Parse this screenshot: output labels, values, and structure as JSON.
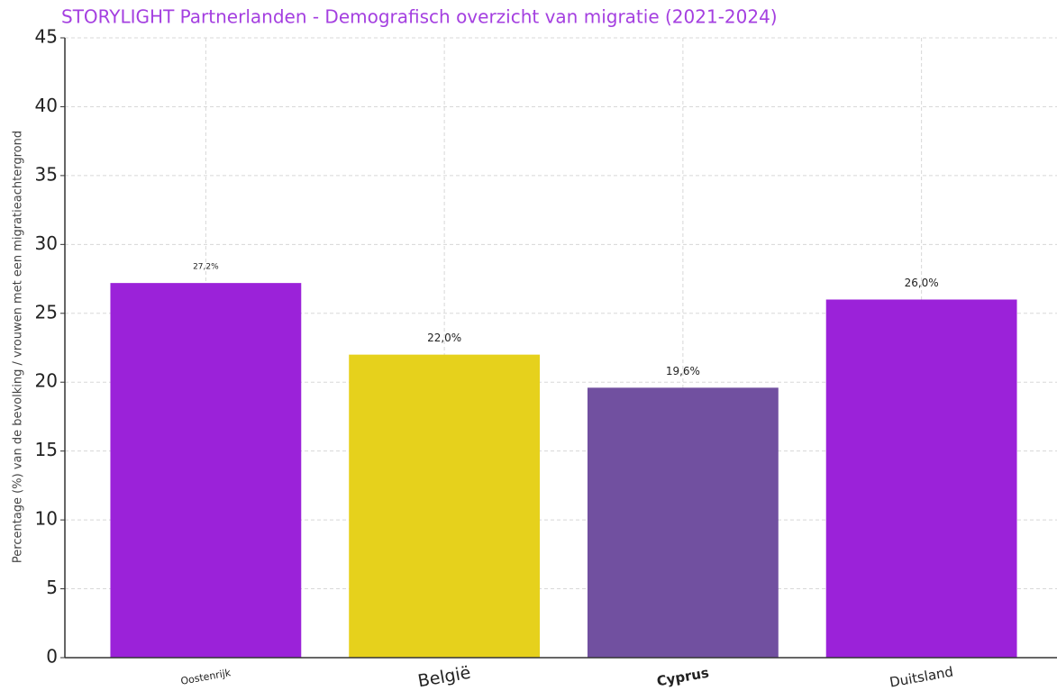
{
  "chart_data": {
    "type": "bar",
    "title": "STORYLIGHT Partnerlanden - Demografisch overzicht van migratie (2021-2024)",
    "y_label": "Percentage (%) van de bevolking / vrouwen met een migratieachtergrond",
    "categories": [
      "Oostenrijk",
      "België",
      "Cyprus",
      "Duitsland"
    ],
    "values": [
      27.2,
      22.0,
      19.6,
      26.0
    ],
    "value_labels": [
      "27,2%",
      "22,0%",
      "19,6%",
      "26,0%"
    ],
    "colors": [
      "#9b22d9",
      "#e6d11c",
      "#7150a0",
      "#9b22d9"
    ],
    "ylim": [
      0,
      45
    ],
    "yticks": [
      0,
      5,
      10,
      15,
      20,
      25,
      30,
      35,
      40,
      45
    ],
    "grid": true
  }
}
